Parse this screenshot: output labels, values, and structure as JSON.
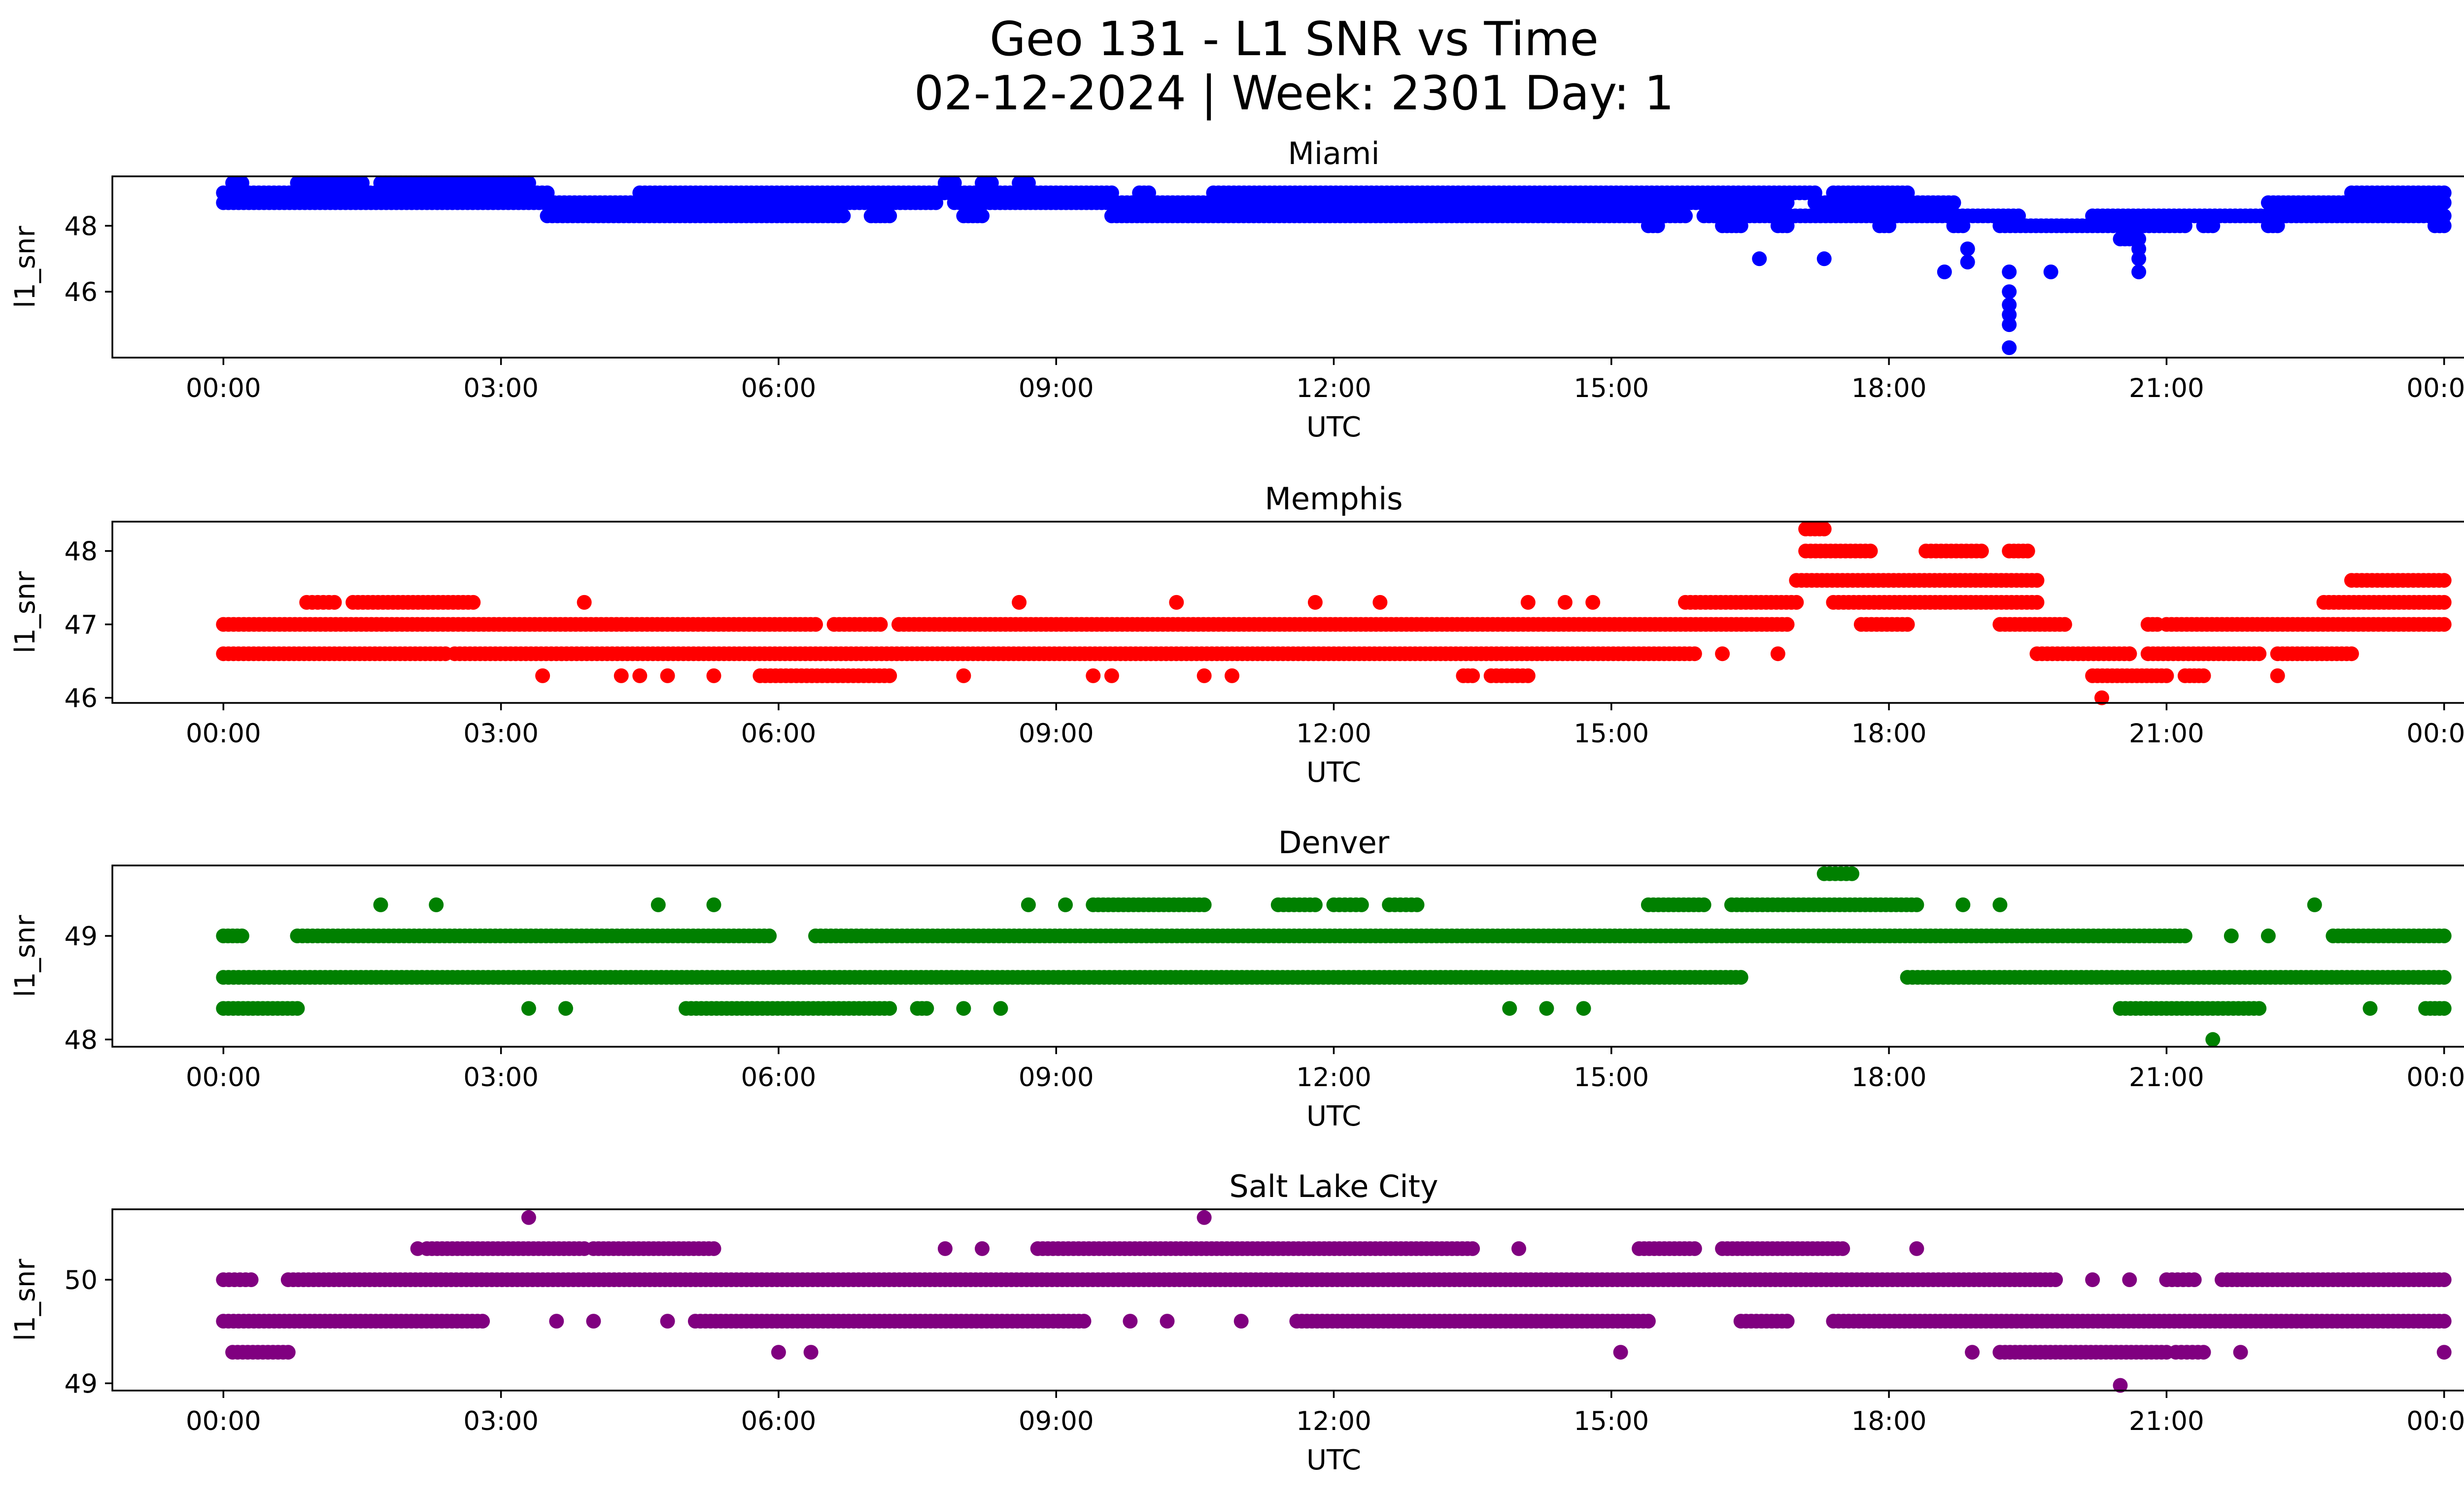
{
  "figure": {
    "title_line1": "Geo 131 - L1 SNR vs Time",
    "title_line2": "02-12-2024 | Week: 2301 Day: 1"
  },
  "chart_data": [
    {
      "type": "scatter",
      "title": "Miami",
      "xlabel": "UTC",
      "ylabel": "l1_snr",
      "color": "#0000ff",
      "x_unit": "hours UTC",
      "xlim": [
        -1.2,
        25.2
      ],
      "ylim": [
        44.0,
        49.5
      ],
      "xticks": [
        0,
        3,
        6,
        9,
        12,
        15,
        18,
        21,
        24
      ],
      "xtick_labels": [
        "00:00",
        "03:00",
        "06:00",
        "09:00",
        "12:00",
        "15:00",
        "18:00",
        "21:00",
        "00:00"
      ],
      "yticks": [
        46,
        48
      ],
      "ytick_labels": [
        "46",
        "48"
      ],
      "bands": [
        {
          "y": 49.3,
          "segments": [
            [
              0.1,
              0.2
            ],
            [
              0.8,
              1.5
            ],
            [
              1.7,
              3.3
            ],
            [
              7.8,
              7.9
            ],
            [
              8.2,
              8.3
            ],
            [
              8.6,
              8.7
            ]
          ]
        },
        {
          "y": 49.0,
          "segments": [
            [
              0,
              3.5
            ],
            [
              4.5,
              9.6
            ],
            [
              9.9,
              10.0
            ],
            [
              10.7,
              17.2
            ],
            [
              17.4,
              18.2
            ],
            [
              23.0,
              24
            ]
          ]
        },
        {
          "y": 48.7,
          "segments": [
            [
              0,
              7.7
            ],
            [
              7.9,
              16.9
            ],
            [
              17.2,
              18.7
            ],
            [
              22.1,
              24
            ]
          ]
        },
        {
          "y": 48.3,
          "segments": [
            [
              3.5,
              6.7
            ],
            [
              7.0,
              7.2
            ],
            [
              8.0,
              8.2
            ],
            [
              9.6,
              15.8
            ],
            [
              16.0,
              19.4
            ],
            [
              20.2,
              24
            ]
          ]
        },
        {
          "y": 48.0,
          "segments": [
            [
              15.4,
              15.5
            ],
            [
              16.2,
              16.4
            ],
            [
              16.8,
              16.9
            ],
            [
              17.9,
              18.0
            ],
            [
              18.7,
              18.8
            ],
            [
              19.2,
              21.2
            ],
            [
              21.4,
              21.5
            ],
            [
              22.1,
              22.2
            ],
            [
              23.9,
              24
            ]
          ]
        },
        {
          "y": 47.6,
          "segments": [
            [
              20.5,
              20.7
            ]
          ]
        }
      ],
      "points": [
        {
          "x": 16.6,
          "y": 47.0
        },
        {
          "x": 17.3,
          "y": 47.0
        },
        {
          "x": 18.6,
          "y": 46.6
        },
        {
          "x": 18.85,
          "y": 47.3
        },
        {
          "x": 18.85,
          "y": 46.9
        },
        {
          "x": 19.3,
          "y": 46.6
        },
        {
          "x": 19.3,
          "y": 46.0
        },
        {
          "x": 19.3,
          "y": 45.6
        },
        {
          "x": 19.3,
          "y": 45.3
        },
        {
          "x": 19.3,
          "y": 45.0
        },
        {
          "x": 19.3,
          "y": 44.3
        },
        {
          "x": 19.75,
          "y": 46.6
        },
        {
          "x": 20.7,
          "y": 47.3
        },
        {
          "x": 20.7,
          "y": 47.0
        },
        {
          "x": 20.7,
          "y": 46.6
        }
      ]
    },
    {
      "type": "scatter",
      "title": "Memphis",
      "xlabel": "UTC",
      "ylabel": "l1_snr",
      "color": "#ff0000",
      "x_unit": "hours UTC",
      "xlim": [
        -1.2,
        25.2
      ],
      "ylim": [
        45.93,
        48.4
      ],
      "xticks": [
        0,
        3,
        6,
        9,
        12,
        15,
        18,
        21,
        24
      ],
      "xtick_labels": [
        "00:00",
        "03:00",
        "06:00",
        "09:00",
        "12:00",
        "15:00",
        "18:00",
        "21:00",
        "00:00"
      ],
      "yticks": [
        46,
        47,
        48
      ],
      "ytick_labels": [
        "46",
        "47",
        "48"
      ],
      "bands": [
        {
          "y": 48.3,
          "segments": [
            [
              17.1,
              17.3
            ]
          ]
        },
        {
          "y": 48.0,
          "segments": [
            [
              17.1,
              17.8
            ],
            [
              18.4,
              19.0
            ],
            [
              19.3,
              19.5
            ]
          ]
        },
        {
          "y": 47.6,
          "segments": [
            [
              17.0,
              19.6
            ],
            [
              23.0,
              24
            ]
          ]
        },
        {
          "y": 47.3,
          "segments": [
            [
              0.9,
              1.2
            ],
            [
              1.4,
              2.7
            ],
            [
              15.8,
              17.0
            ],
            [
              17.4,
              19.6
            ],
            [
              22.7,
              24
            ]
          ]
        },
        {
          "y": 47.0,
          "segments": [
            [
              0,
              6.4
            ],
            [
              6.6,
              7.1
            ],
            [
              7.3,
              16.9
            ],
            [
              17.7,
              18.2
            ],
            [
              19.2,
              19.9
            ],
            [
              20.8,
              20.9
            ],
            [
              21.0,
              24
            ]
          ]
        },
        {
          "y": 46.6,
          "segments": [
            [
              0,
              2.4
            ],
            [
              2.5,
              15.9
            ],
            [
              19.6,
              20.6
            ],
            [
              20.8,
              22.0
            ],
            [
              22.2,
              23.0
            ]
          ]
        },
        {
          "y": 46.3,
          "segments": [
            [
              5.8,
              7.2
            ],
            [
              13.4,
              13.5
            ],
            [
              13.7,
              14.1
            ],
            [
              20.2,
              21.0
            ],
            [
              21.2,
              21.4
            ]
          ]
        }
      ],
      "points": [
        {
          "x": 3.45,
          "y": 46.3
        },
        {
          "x": 3.9,
          "y": 47.3
        },
        {
          "x": 4.3,
          "y": 46.3
        },
        {
          "x": 4.5,
          "y": 46.3
        },
        {
          "x": 4.8,
          "y": 46.3
        },
        {
          "x": 5.3,
          "y": 46.3
        },
        {
          "x": 8.0,
          "y": 46.3
        },
        {
          "x": 8.6,
          "y": 47.3
        },
        {
          "x": 9.4,
          "y": 46.3
        },
        {
          "x": 9.6,
          "y": 46.3
        },
        {
          "x": 10.3,
          "y": 47.3
        },
        {
          "x": 10.6,
          "y": 46.3
        },
        {
          "x": 10.9,
          "y": 46.3
        },
        {
          "x": 11.8,
          "y": 47.3
        },
        {
          "x": 12.5,
          "y": 47.3
        },
        {
          "x": 14.1,
          "y": 47.3
        },
        {
          "x": 14.5,
          "y": 47.3
        },
        {
          "x": 14.8,
          "y": 47.3
        },
        {
          "x": 16.2,
          "y": 46.6
        },
        {
          "x": 16.8,
          "y": 46.6
        },
        {
          "x": 20.3,
          "y": 46.0
        },
        {
          "x": 20.6,
          "y": 46.6
        },
        {
          "x": 22.2,
          "y": 46.3
        }
      ]
    },
    {
      "type": "scatter",
      "title": "Denver",
      "xlabel": "UTC",
      "ylabel": "l1_snr",
      "color": "#008000",
      "x_unit": "hours UTC",
      "xlim": [
        -1.2,
        25.2
      ],
      "ylim": [
        47.93,
        49.68
      ],
      "xticks": [
        0,
        3,
        6,
        9,
        12,
        15,
        18,
        21,
        24
      ],
      "xtick_labels": [
        "00:00",
        "03:00",
        "06:00",
        "09:00",
        "12:00",
        "15:00",
        "18:00",
        "21:00",
        "00:00"
      ],
      "yticks": [
        48,
        49
      ],
      "ytick_labels": [
        "48",
        "49"
      ],
      "bands": [
        {
          "y": 49.6,
          "segments": [
            [
              17.3,
              17.6
            ]
          ]
        },
        {
          "y": 49.3,
          "segments": [
            [
              9.4,
              10.6
            ],
            [
              11.4,
              11.8
            ],
            [
              12.0,
              12.3
            ],
            [
              12.6,
              12.9
            ],
            [
              15.4,
              16.0
            ],
            [
              16.3,
              18.3
            ]
          ]
        },
        {
          "y": 49.0,
          "segments": [
            [
              0,
              0.2
            ],
            [
              0.8,
              5.9
            ],
            [
              6.4,
              21.2
            ],
            [
              22.8,
              24
            ]
          ]
        },
        {
          "y": 48.6,
          "segments": [
            [
              0,
              16.4
            ],
            [
              18.2,
              24
            ]
          ]
        },
        {
          "y": 48.3,
          "segments": [
            [
              0,
              0.8
            ],
            [
              5.0,
              7.2
            ],
            [
              7.5,
              7.6
            ],
            [
              20.5,
              22.0
            ],
            [
              23.8,
              24
            ]
          ]
        }
      ],
      "points": [
        {
          "x": 1.7,
          "y": 49.3
        },
        {
          "x": 2.3,
          "y": 49.3
        },
        {
          "x": 3.3,
          "y": 48.3
        },
        {
          "x": 3.7,
          "y": 48.3
        },
        {
          "x": 4.7,
          "y": 49.3
        },
        {
          "x": 5.3,
          "y": 49.3
        },
        {
          "x": 8.0,
          "y": 48.3
        },
        {
          "x": 8.4,
          "y": 48.3
        },
        {
          "x": 8.7,
          "y": 49.3
        },
        {
          "x": 9.1,
          "y": 49.3
        },
        {
          "x": 13.9,
          "y": 48.3
        },
        {
          "x": 14.3,
          "y": 48.3
        },
        {
          "x": 14.7,
          "y": 48.3
        },
        {
          "x": 18.8,
          "y": 49.3
        },
        {
          "x": 19.2,
          "y": 49.3
        },
        {
          "x": 21.5,
          "y": 48.0
        },
        {
          "x": 21.7,
          "y": 49.0
        },
        {
          "x": 22.1,
          "y": 49.0
        },
        {
          "x": 22.6,
          "y": 49.3
        },
        {
          "x": 23.2,
          "y": 48.3
        }
      ]
    },
    {
      "type": "scatter",
      "title": "Salt Lake City",
      "xlabel": "UTC",
      "ylabel": "l1_snr",
      "color": "#800080",
      "x_unit": "hours UTC",
      "xlim": [
        -1.2,
        25.2
      ],
      "ylim": [
        48.93,
        50.68
      ],
      "xticks": [
        0,
        3,
        6,
        9,
        12,
        15,
        18,
        21,
        24
      ],
      "xtick_labels": [
        "00:00",
        "03:00",
        "06:00",
        "09:00",
        "12:00",
        "15:00",
        "18:00",
        "21:00",
        "00:00"
      ],
      "yticks": [
        49,
        50
      ],
      "ytick_labels": [
        "49",
        "50"
      ],
      "bands": [
        {
          "y": 50.3,
          "segments": [
            [
              2.2,
              3.9
            ],
            [
              4.0,
              5.3
            ],
            [
              8.8,
              13.5
            ],
            [
              15.3,
              15.9
            ],
            [
              16.2,
              17.5
            ]
          ]
        },
        {
          "y": 50.0,
          "segments": [
            [
              0,
              0.3
            ],
            [
              0.7,
              19.8
            ],
            [
              21.0,
              21.3
            ],
            [
              21.6,
              24
            ]
          ]
        },
        {
          "y": 49.6,
          "segments": [
            [
              0,
              2.8
            ],
            [
              5.1,
              9.3
            ],
            [
              11.6,
              15.4
            ],
            [
              16.4,
              16.9
            ],
            [
              17.4,
              24
            ]
          ]
        },
        {
          "y": 49.3,
          "segments": [
            [
              0.1,
              0.7
            ],
            [
              19.2,
              21.0
            ],
            [
              21.1,
              21.4
            ]
          ]
        }
      ],
      "points": [
        {
          "x": 2.1,
          "y": 50.3
        },
        {
          "x": 3.3,
          "y": 50.6
        },
        {
          "x": 3.6,
          "y": 49.6
        },
        {
          "x": 4.0,
          "y": 49.6
        },
        {
          "x": 4.8,
          "y": 49.6
        },
        {
          "x": 6.0,
          "y": 49.3
        },
        {
          "x": 6.35,
          "y": 49.3
        },
        {
          "x": 7.8,
          "y": 50.3
        },
        {
          "x": 8.2,
          "y": 50.3
        },
        {
          "x": 9.8,
          "y": 49.6
        },
        {
          "x": 10.2,
          "y": 49.6
        },
        {
          "x": 10.6,
          "y": 50.6
        },
        {
          "x": 11.0,
          "y": 49.6
        },
        {
          "x": 14.0,
          "y": 50.3
        },
        {
          "x": 15.1,
          "y": 49.3
        },
        {
          "x": 16.9,
          "y": 49.6
        },
        {
          "x": 18.3,
          "y": 50.3
        },
        {
          "x": 18.9,
          "y": 49.3
        },
        {
          "x": 20.2,
          "y": 50.0
        },
        {
          "x": 20.5,
          "y": 48.98
        },
        {
          "x": 20.6,
          "y": 50.0
        },
        {
          "x": 21.8,
          "y": 49.3
        },
        {
          "x": 24.0,
          "y": 49.3
        }
      ]
    }
  ]
}
